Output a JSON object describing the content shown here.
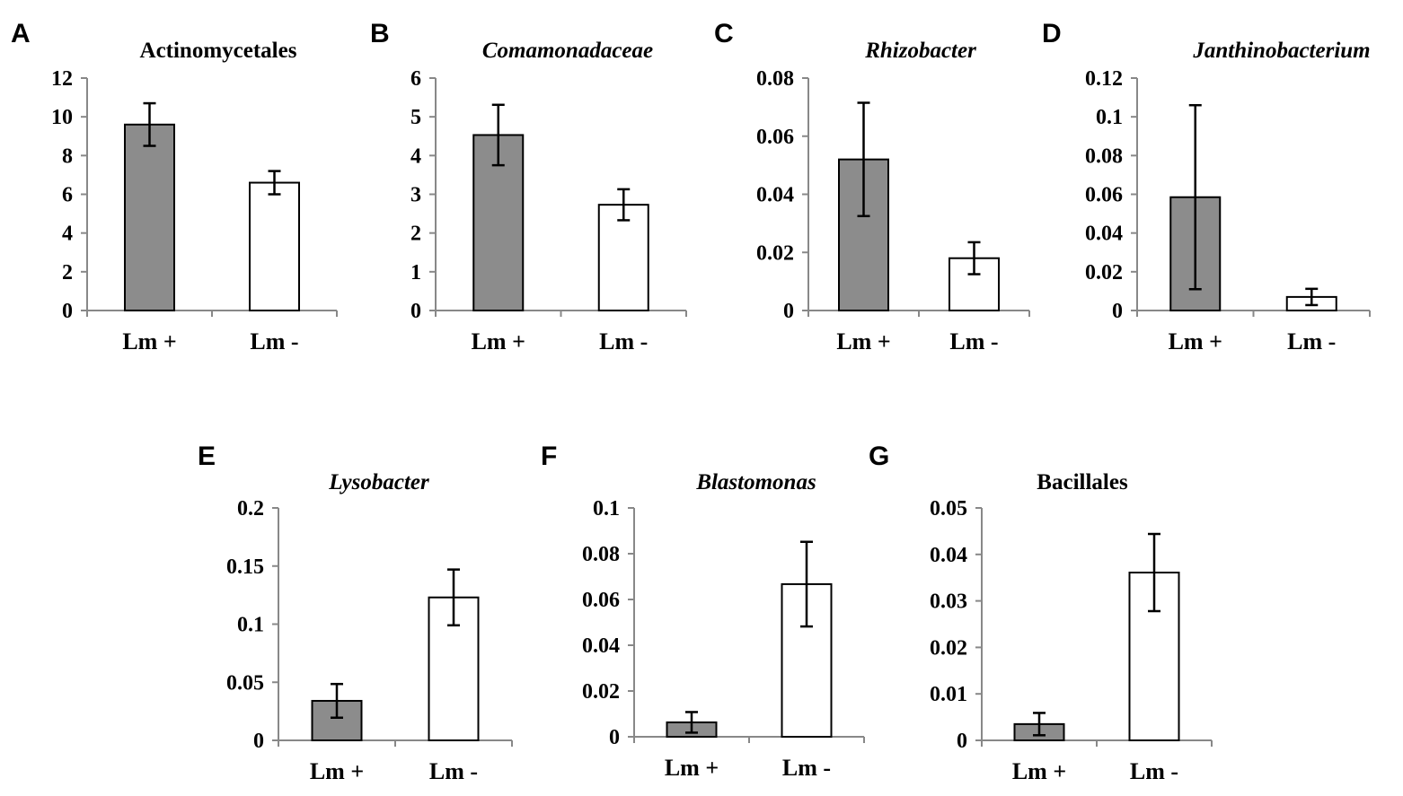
{
  "figure": {
    "bar_colors": {
      "Lm +": "#8c8c8c",
      "Lm -": "#ffffff"
    },
    "axis_color": "#888888"
  },
  "chart_data": [
    {
      "panel": "A",
      "type": "bar",
      "title": "Actinomycetales",
      "title_italic": false,
      "categories": [
        "Lm +",
        "Lm -"
      ],
      "values": [
        9.6,
        6.6
      ],
      "errors": [
        1.1,
        0.6
      ],
      "ylim": [
        0,
        12
      ],
      "yticks": [
        "0",
        "2",
        "4",
        "6",
        "8",
        "10",
        "12"
      ],
      "xlabel": "",
      "ylabel": ""
    },
    {
      "panel": "B",
      "type": "bar",
      "title": "Comamonadaceae",
      "title_italic": true,
      "categories": [
        "Lm +",
        "Lm -"
      ],
      "values": [
        4.53,
        2.73
      ],
      "errors": [
        0.78,
        0.4
      ],
      "ylim": [
        0,
        6
      ],
      "yticks": [
        "0",
        "1",
        "2",
        "3",
        "4",
        "5",
        "6"
      ],
      "xlabel": "",
      "ylabel": ""
    },
    {
      "panel": "C",
      "type": "bar",
      "title": "Rhizobacter",
      "title_italic": true,
      "categories": [
        "Lm +",
        "Lm -"
      ],
      "values": [
        0.052,
        0.018
      ],
      "errors": [
        0.0195,
        0.0055
      ],
      "ylim": [
        0,
        0.08
      ],
      "yticks": [
        "0",
        "0.02",
        "0.04",
        "0.06",
        "0.08"
      ],
      "xlabel": "",
      "ylabel": ""
    },
    {
      "panel": "D",
      "type": "bar",
      "title": "Janthinobacterium",
      "title_italic": true,
      "categories": [
        "Lm +",
        "Lm -"
      ],
      "values": [
        0.0585,
        0.007
      ],
      "errors": [
        0.0475,
        0.0042
      ],
      "ylim": [
        0,
        0.12
      ],
      "yticks": [
        "0",
        "0.02",
        "0.04",
        "0.06",
        "0.08",
        "0.1",
        "0.12"
      ],
      "xlabel": "",
      "ylabel": ""
    },
    {
      "panel": "E",
      "type": "bar",
      "title": "Lysobacter",
      "title_italic": true,
      "categories": [
        "Lm +",
        "Lm -"
      ],
      "values": [
        0.034,
        0.123
      ],
      "errors": [
        0.0145,
        0.024
      ],
      "ylim": [
        0,
        0.2
      ],
      "yticks": [
        "0",
        "0.05",
        "0.1",
        "0.15",
        "0.2"
      ],
      "xlabel": "",
      "ylabel": ""
    },
    {
      "panel": "F",
      "type": "bar",
      "title": "Blastomonas",
      "title_italic": true,
      "categories": [
        "Lm +",
        "Lm -"
      ],
      "values": [
        0.0063,
        0.0667
      ],
      "errors": [
        0.0045,
        0.0185
      ],
      "ylim": [
        0,
        0.1
      ],
      "yticks": [
        "0",
        "0.02",
        "0.04",
        "0.06",
        "0.08",
        "0.1"
      ],
      "xlabel": "",
      "ylabel": ""
    },
    {
      "panel": "G",
      "type": "bar",
      "title": "Bacillales",
      "title_italic": false,
      "categories": [
        "Lm +",
        "Lm -"
      ],
      "values": [
        0.0035,
        0.0361
      ],
      "errors": [
        0.0024,
        0.0083
      ],
      "ylim": [
        0,
        0.05
      ],
      "yticks": [
        "0",
        "0.01",
        "0.02",
        "0.03",
        "0.04",
        "0.05"
      ],
      "xlabel": "",
      "ylabel": ""
    }
  ]
}
